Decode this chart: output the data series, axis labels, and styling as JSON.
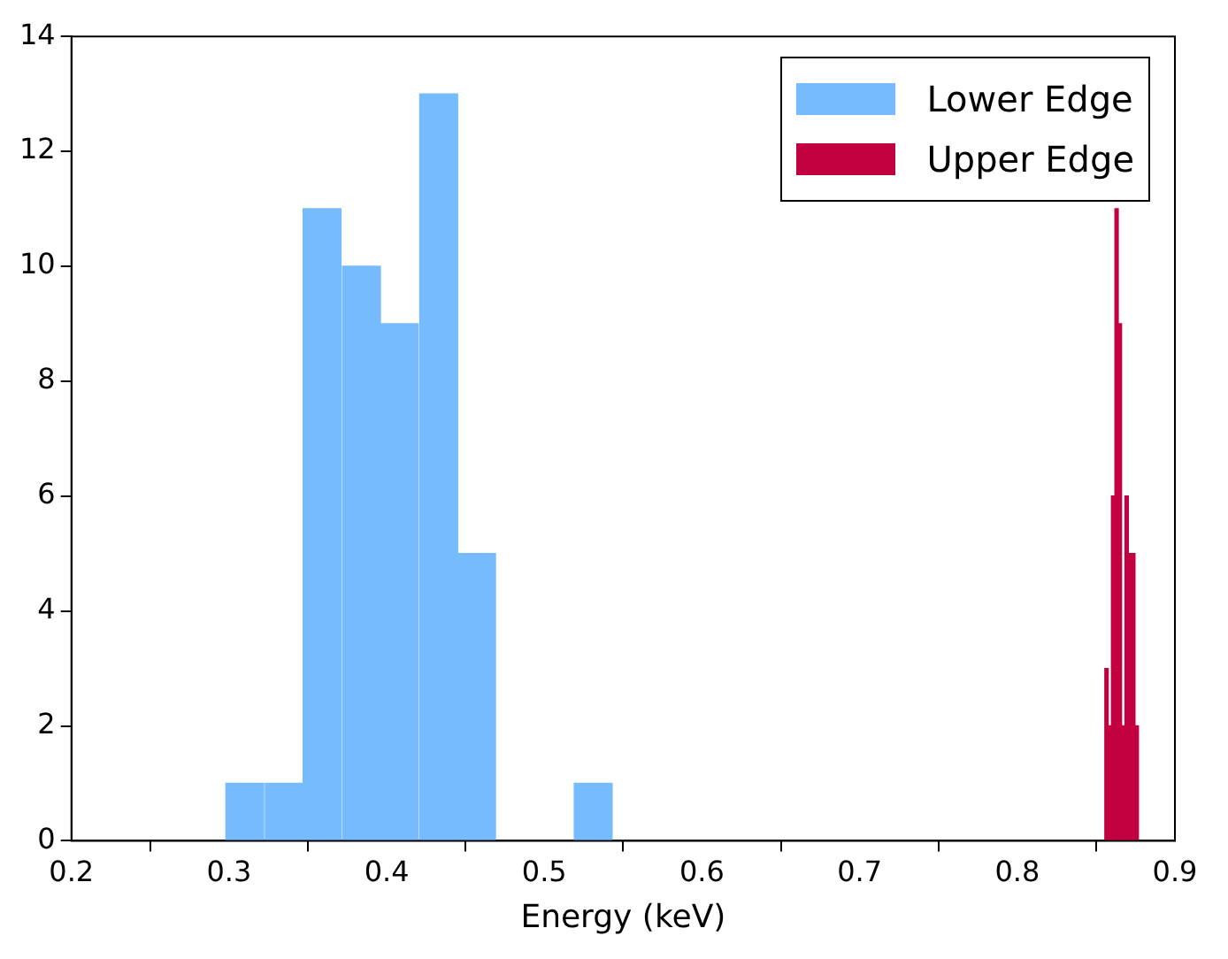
{
  "chart_data": {
    "type": "bar",
    "xlabel": "Energy (keV)",
    "xlim": [
      0.2,
      0.9
    ],
    "xticks": [
      0.2,
      0.3,
      0.4,
      0.5,
      0.6,
      0.7,
      0.8,
      0.9
    ],
    "ylim": [
      0,
      14
    ],
    "yticks": [
      0,
      2,
      4,
      6,
      8,
      10,
      12,
      14
    ],
    "grid": false,
    "legend": "top right",
    "series": [
      {
        "name": "Lower Edge",
        "color": "#77bbff",
        "x": [
          0.31,
          0.335,
          0.359,
          0.384,
          0.408,
          0.433,
          0.457,
          0.531
        ],
        "values": [
          1,
          1,
          11,
          10,
          9,
          13,
          5,
          1
        ]
      },
      {
        "name": "Upper Edge",
        "color": "#c20040",
        "x": [
          0.8566,
          0.8587,
          0.8608,
          0.863,
          0.8651,
          0.8672,
          0.8694,
          0.8715,
          0.8736,
          0.8758
        ],
        "values": [
          3,
          2,
          6,
          11,
          9,
          2,
          6,
          5,
          5,
          2
        ]
      }
    ]
  }
}
